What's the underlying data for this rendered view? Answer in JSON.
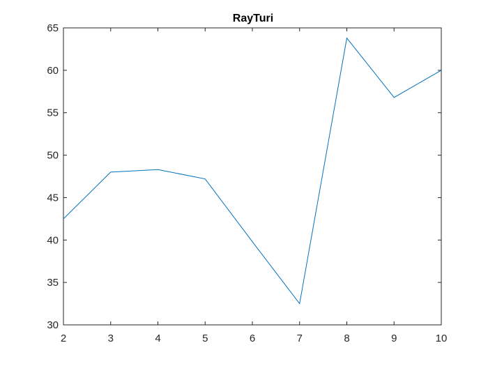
{
  "chart_data": {
    "type": "line",
    "title": "RayTuri",
    "xlabel": "",
    "ylabel": "",
    "xlim": [
      2,
      10
    ],
    "ylim": [
      30,
      65
    ],
    "xticks": [
      2,
      3,
      4,
      5,
      6,
      7,
      8,
      9,
      10
    ],
    "yticks": [
      30,
      35,
      40,
      45,
      50,
      55,
      60,
      65
    ],
    "grid": false,
    "legend": "none",
    "series": [
      {
        "color": "#0072BD",
        "x": [
          2,
          3,
          4,
          5,
          6,
          7,
          8,
          9,
          10
        ],
        "y": [
          42.5,
          48.0,
          48.3,
          47.2,
          39.8,
          32.5,
          63.8,
          56.8,
          60.0
        ]
      }
    ]
  }
}
